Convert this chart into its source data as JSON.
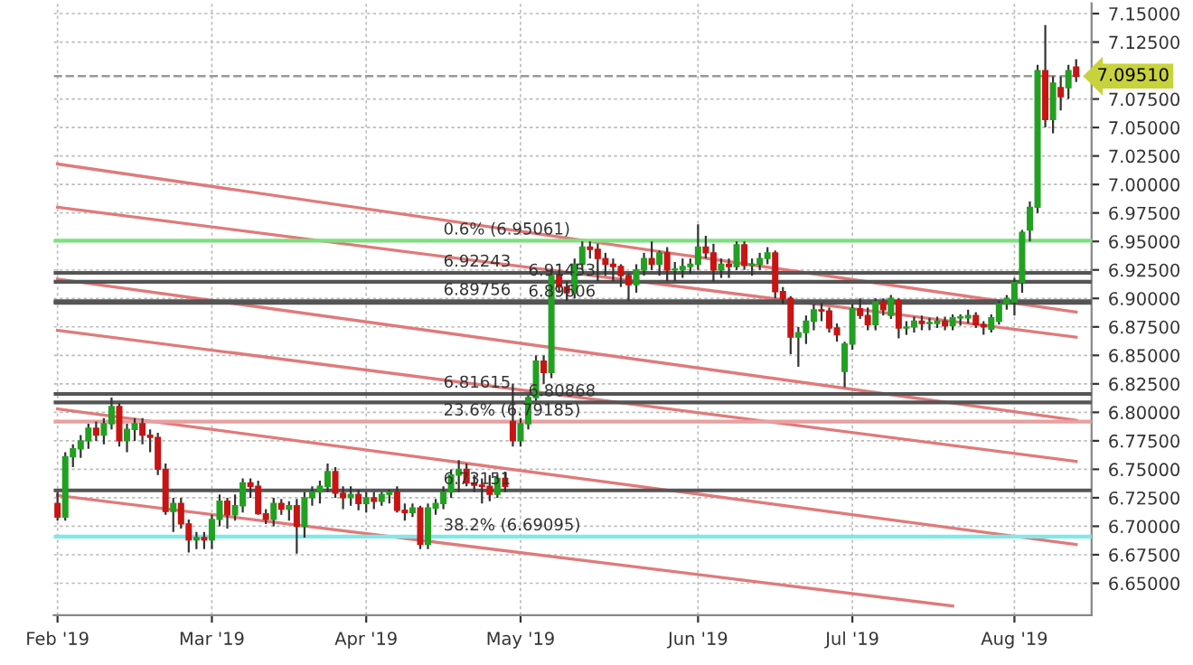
{
  "chart_data": {
    "type": "candlestick",
    "categories": [
      "Feb '19",
      null,
      null,
      null,
      null,
      null,
      null,
      null,
      null,
      null,
      null,
      null,
      null,
      null,
      null,
      null,
      null,
      null,
      null,
      null,
      "Mar '19",
      null,
      null,
      null,
      null,
      null,
      null,
      null,
      null,
      null,
      null,
      null,
      null,
      null,
      null,
      null,
      null,
      null,
      null,
      null,
      "Apr '19",
      null,
      null,
      null,
      null,
      null,
      null,
      null,
      null,
      null,
      null,
      null,
      null,
      null,
      null,
      null,
      null,
      null,
      null,
      null,
      "May '19",
      null,
      null,
      null,
      null,
      null,
      null,
      null,
      null,
      null,
      null,
      null,
      null,
      null,
      null,
      null,
      null,
      null,
      null,
      null,
      null,
      null,
      null,
      "Jun '19",
      null,
      null,
      null,
      null,
      null,
      null,
      null,
      null,
      null,
      null,
      null,
      null,
      null,
      null,
      null,
      null,
      null,
      null,
      null,
      "Jul '19",
      null,
      null,
      null,
      null,
      null,
      null,
      null,
      null,
      null,
      null,
      null,
      null,
      null,
      null,
      null,
      null,
      null,
      null,
      null,
      null,
      "Aug '19",
      null,
      null,
      null,
      null,
      null,
      null,
      null,
      null
    ],
    "ohlc": [
      [
        6.72,
        6.73,
        6.705,
        6.708
      ],
      [
        6.708,
        6.765,
        6.705,
        6.761
      ],
      [
        6.761,
        6.772,
        6.752,
        6.768
      ],
      [
        6.768,
        6.78,
        6.76,
        6.775
      ],
      [
        6.775,
        6.79,
        6.768,
        6.786
      ],
      [
        6.786,
        6.792,
        6.775,
        6.78
      ],
      [
        6.78,
        6.795,
        6.772,
        6.79
      ],
      [
        6.79,
        6.813,
        6.785,
        6.805
      ],
      [
        6.805,
        6.808,
        6.77,
        6.775
      ],
      [
        6.775,
        6.79,
        6.765,
        6.785
      ],
      [
        6.785,
        6.795,
        6.775,
        6.79
      ],
      [
        6.79,
        6.795,
        6.772,
        6.78
      ],
      [
        6.78,
        6.785,
        6.765,
        6.778
      ],
      [
        6.778,
        6.782,
        6.745,
        6.75
      ],
      [
        6.75,
        6.755,
        6.71,
        6.713
      ],
      [
        6.713,
        6.725,
        6.695,
        6.72
      ],
      [
        6.72,
        6.725,
        6.698,
        6.702
      ],
      [
        6.702,
        6.706,
        6.677,
        6.688
      ],
      [
        6.688,
        6.695,
        6.68,
        6.69
      ],
      [
        6.69,
        6.695,
        6.68,
        6.688
      ],
      [
        6.688,
        6.71,
        6.68,
        6.706
      ],
      [
        6.706,
        6.728,
        6.7,
        6.722
      ],
      [
        6.722,
        6.725,
        6.698,
        6.71
      ],
      [
        6.71,
        6.728,
        6.705,
        6.718
      ],
      [
        6.718,
        6.742,
        6.712,
        6.738
      ],
      [
        6.738,
        6.742,
        6.725,
        6.735
      ],
      [
        6.735,
        6.74,
        6.71,
        6.711
      ],
      [
        6.711,
        6.715,
        6.702,
        6.706
      ],
      [
        6.706,
        6.725,
        6.7,
        6.72
      ],
      [
        6.72,
        6.724,
        6.71,
        6.715
      ],
      [
        6.715,
        6.722,
        6.705,
        6.718
      ],
      [
        6.718,
        6.724,
        6.676,
        6.7
      ],
      [
        6.7,
        6.73,
        6.69,
        6.725
      ],
      [
        6.725,
        6.735,
        6.718,
        6.73
      ],
      [
        6.73,
        6.74,
        6.72,
        6.735
      ],
      [
        6.735,
        6.755,
        6.73,
        6.748
      ],
      [
        6.748,
        6.752,
        6.725,
        6.729
      ],
      [
        6.729,
        6.735,
        6.715,
        6.725
      ],
      [
        6.725,
        6.735,
        6.718,
        6.728
      ],
      [
        6.728,
        6.732,
        6.714,
        6.72
      ],
      [
        6.72,
        6.73,
        6.712,
        6.725
      ],
      [
        6.725,
        6.73,
        6.715,
        6.722
      ],
      [
        6.722,
        6.73,
        6.718,
        6.728
      ],
      [
        6.728,
        6.732,
        6.72,
        6.73
      ],
      [
        6.73,
        6.735,
        6.712,
        6.714
      ],
      [
        6.714,
        6.72,
        6.705,
        6.712
      ],
      [
        6.712,
        6.72,
        6.708,
        6.716
      ],
      [
        6.716,
        6.718,
        6.68,
        6.684
      ],
      [
        6.684,
        6.72,
        6.68,
        6.716
      ],
      [
        6.716,
        6.724,
        6.71,
        6.72
      ],
      [
        6.72,
        6.735,
        6.715,
        6.73
      ],
      [
        6.73,
        6.75,
        6.725,
        6.745
      ],
      [
        6.745,
        6.758,
        6.73,
        6.75
      ],
      [
        6.75,
        6.755,
        6.735,
        6.738
      ],
      [
        6.738,
        6.745,
        6.73,
        6.736
      ],
      [
        6.736,
        6.742,
        6.72,
        6.735
      ],
      [
        6.735,
        6.745,
        6.722,
        6.728
      ],
      [
        6.728,
        6.746,
        6.725,
        6.742
      ],
      [
        6.742,
        6.748,
        6.73,
        6.735
      ],
      [
        6.792,
        6.825,
        6.77,
        6.775
      ],
      [
        6.775,
        6.795,
        6.77,
        6.79
      ],
      [
        6.79,
        6.815,
        6.785,
        6.813
      ],
      [
        6.813,
        6.85,
        6.81,
        6.845
      ],
      [
        6.845,
        6.85,
        6.825,
        6.835
      ],
      [
        6.835,
        6.925,
        6.83,
        6.92
      ],
      [
        6.92,
        6.925,
        6.905,
        6.91
      ],
      [
        6.91,
        6.915,
        6.898,
        6.905
      ],
      [
        6.905,
        6.935,
        6.9,
        6.93
      ],
      [
        6.93,
        6.95,
        6.925,
        6.945
      ],
      [
        6.945,
        6.95,
        6.935,
        6.943
      ],
      [
        6.943,
        6.948,
        6.915,
        6.935
      ],
      [
        6.935,
        6.94,
        6.92,
        6.93
      ],
      [
        6.93,
        6.935,
        6.915,
        6.928
      ],
      [
        6.928,
        6.93,
        6.91,
        6.92
      ],
      [
        6.92,
        6.922,
        6.898,
        6.912
      ],
      [
        6.912,
        6.93,
        6.905,
        6.925
      ],
      [
        6.925,
        6.94,
        6.92,
        6.935
      ],
      [
        6.935,
        6.95,
        6.925,
        6.93
      ],
      [
        6.93,
        6.942,
        6.92,
        6.94
      ],
      [
        6.94,
        6.945,
        6.915,
        6.925
      ],
      [
        6.925,
        6.932,
        6.915,
        6.925
      ],
      [
        6.925,
        6.935,
        6.918,
        6.928
      ],
      [
        6.928,
        6.935,
        6.922,
        6.93
      ],
      [
        6.93,
        6.965,
        6.925,
        6.945
      ],
      [
        6.945,
        6.955,
        6.935,
        6.94
      ],
      [
        6.94,
        6.948,
        6.915,
        6.925
      ],
      [
        6.925,
        6.935,
        6.918,
        6.93
      ],
      [
        6.93,
        6.935,
        6.918,
        6.928
      ],
      [
        6.928,
        6.95,
        6.925,
        6.947
      ],
      [
        6.947,
        6.95,
        6.925,
        6.929
      ],
      [
        6.929,
        6.935,
        6.92,
        6.93
      ],
      [
        6.93,
        6.94,
        6.925,
        6.935
      ],
      [
        6.935,
        6.945,
        6.93,
        6.94
      ],
      [
        6.94,
        6.942,
        6.9,
        6.906
      ],
      [
        6.906,
        6.91,
        6.895,
        6.9
      ],
      [
        6.9,
        6.902,
        6.851,
        6.866
      ],
      [
        6.866,
        6.875,
        6.84,
        6.87
      ],
      [
        6.87,
        6.885,
        6.86,
        6.88
      ],
      [
        6.88,
        6.895,
        6.872,
        6.89
      ],
      [
        6.89,
        6.896,
        6.88,
        6.889
      ],
      [
        6.889,
        6.892,
        6.87,
        6.874
      ],
      [
        6.874,
        6.878,
        6.862,
        6.868
      ],
      [
        6.836,
        6.862,
        6.822,
        6.86
      ],
      [
        6.86,
        6.895,
        6.855,
        6.891
      ],
      [
        6.891,
        6.9,
        6.882,
        6.885
      ],
      [
        6.885,
        6.892,
        6.872,
        6.877
      ],
      [
        6.877,
        6.9,
        6.872,
        6.897
      ],
      [
        6.897,
        6.9,
        6.885,
        6.89
      ],
      [
        6.885,
        6.903,
        6.882,
        6.9
      ],
      [
        6.898,
        6.9,
        6.865,
        6.874
      ],
      [
        6.874,
        6.88,
        6.868,
        6.874
      ],
      [
        6.875,
        6.884,
        6.87,
        6.88
      ],
      [
        6.88,
        6.885,
        6.872,
        6.878
      ],
      [
        6.878,
        6.883,
        6.872,
        6.878
      ],
      [
        6.878,
        6.884,
        6.874,
        6.88
      ],
      [
        6.88,
        6.884,
        6.872,
        6.876
      ],
      [
        6.876,
        6.886,
        6.872,
        6.883
      ],
      [
        6.883,
        6.886,
        6.876,
        6.883
      ],
      [
        6.883,
        6.89,
        6.878,
        6.885
      ],
      [
        6.885,
        6.888,
        6.874,
        6.877
      ],
      [
        6.877,
        6.88,
        6.868,
        6.875
      ],
      [
        6.873,
        6.886,
        6.87,
        6.883
      ],
      [
        6.88,
        6.898,
        6.877,
        6.895
      ],
      [
        6.895,
        6.903,
        6.89,
        6.9
      ],
      [
        6.897,
        6.918,
        6.885,
        6.914
      ],
      [
        6.914,
        6.96,
        6.905,
        6.958
      ],
      [
        6.96,
        6.985,
        6.95,
        6.98
      ],
      [
        6.98,
        7.105,
        6.975,
        7.1
      ],
      [
        7.1,
        7.14,
        7.05,
        7.057
      ],
      [
        7.057,
        7.095,
        7.045,
        7.089
      ],
      [
        7.085,
        7.095,
        7.065,
        7.077
      ],
      [
        7.085,
        7.105,
        7.075,
        7.1
      ],
      [
        7.103,
        7.11,
        7.09,
        7.0951
      ]
    ],
    "colors": [
      "#c81414",
      "#22a022",
      "#22a022",
      "#22a022",
      "#22a022",
      "#c81414",
      "#22a022",
      "#22a022",
      "#c81414",
      "#22a022",
      "#22a022",
      "#c81414",
      "#c81414",
      "#c81414",
      "#c81414",
      "#22a022",
      "#c81414",
      "#c81414",
      "#22a022",
      "#c81414",
      "#22a022",
      "#22a022",
      "#c81414",
      "#22a022",
      "#22a022",
      "#c81414",
      "#c81414",
      "#c81414",
      "#22a022",
      "#c81414",
      "#22a022",
      "#c81414",
      "#22a022",
      "#22a022",
      "#22a022",
      "#22a022",
      "#c81414",
      "#c81414",
      "#22a022",
      "#c81414",
      "#22a022",
      "#c81414",
      "#22a022",
      "#22a022",
      "#c81414",
      "#c81414",
      "#22a022",
      "#c81414",
      "#22a022",
      "#22a022",
      "#22a022",
      "#22a022",
      "#22a022",
      "#c81414",
      "#c81414",
      "#c81414",
      "#c81414",
      "#22a022",
      "#c81414",
      "#c81414",
      "#22a022",
      "#22a022",
      "#22a022",
      "#c81414",
      "#22a022",
      "#c81414",
      "#c81414",
      "#22a022",
      "#22a022",
      "#c81414",
      "#c81414",
      "#c81414",
      "#c81414",
      "#c81414",
      "#c81414",
      "#22a022",
      "#22a022",
      "#c81414",
      "#22a022",
      "#c81414",
      "#22a022",
      "#22a022",
      "#22a022",
      "#22a022",
      "#c81414",
      "#c81414",
      "#22a022",
      "#c81414",
      "#22a022",
      "#c81414",
      "#22a022",
      "#22a022",
      "#22a022",
      "#c81414",
      "#c81414",
      "#c81414",
      "#22a022",
      "#22a022",
      "#22a022",
      "#c81414",
      "#c81414",
      "#c81414",
      "#22a022",
      "#22a022",
      "#c81414",
      "#c81414",
      "#22a022",
      "#c81414",
      "#22a022",
      "#c81414",
      "#22a022",
      "#22a022",
      "#c81414",
      "#22a022",
      "#22a022",
      "#c81414",
      "#22a022",
      "#22a022",
      "#22a022",
      "#c81414",
      "#c81414",
      "#22a022",
      "#22a022",
      "#22a022",
      "#22a022",
      "#22a022",
      "#22a022",
      "#22a022",
      "#c81414",
      "#22a022",
      "#c81414",
      "#22a022",
      "#c81414"
    ],
    "series": [
      {
        "type": "line",
        "color": "#e07a7a",
        "values": [
          7.018,
          null,
          null,
          null,
          null,
          null,
          null,
          null,
          null,
          null,
          null,
          null,
          null,
          null,
          null,
          null,
          null,
          null,
          null,
          null,
          null,
          null,
          null,
          null,
          null,
          null,
          null,
          null,
          null,
          null,
          null,
          null,
          null,
          null,
          null,
          null,
          null,
          null,
          null,
          null,
          null,
          null,
          null,
          null,
          null,
          null,
          null,
          null,
          null,
          null,
          null,
          null,
          null,
          null,
          null,
          null,
          null,
          null,
          null,
          null,
          null,
          null,
          null,
          null,
          null,
          null,
          null,
          null,
          null,
          null,
          null,
          null,
          null,
          null,
          null,
          null,
          null,
          null,
          null,
          null,
          null,
          null,
          null,
          null,
          null,
          null,
          null,
          null,
          null,
          null,
          null,
          null,
          null,
          null,
          null,
          null,
          null,
          null,
          null,
          null,
          null,
          null,
          null,
          null,
          null,
          null,
          null,
          null,
          null,
          null,
          null,
          null,
          null,
          null,
          null,
          null,
          null,
          null,
          null,
          null,
          null,
          null,
          null,
          null,
          null,
          null,
          null,
          null,
          null,
          null,
          null,
          null,
          6.888
        ]
      },
      {
        "type": "line",
        "color": "#e07a7a",
        "values": [
          6.98,
          null,
          null,
          null,
          null,
          null,
          null,
          null,
          null,
          null,
          null,
          null,
          null,
          null,
          null,
          null,
          null,
          null,
          null,
          null,
          null,
          null,
          null,
          null,
          null,
          null,
          null,
          null,
          null,
          null,
          null,
          null,
          null,
          null,
          null,
          null,
          null,
          null,
          null,
          null,
          null,
          null,
          null,
          null,
          null,
          null,
          null,
          null,
          null,
          null,
          null,
          null,
          null,
          null,
          null,
          null,
          null,
          null,
          null,
          null,
          null,
          null,
          null,
          null,
          null,
          null,
          null,
          null,
          null,
          null,
          null,
          null,
          null,
          null,
          null,
          null,
          null,
          null,
          null,
          null,
          null,
          null,
          null,
          null,
          null,
          null,
          null,
          null,
          null,
          null,
          null,
          null,
          null,
          null,
          null,
          null,
          null,
          null,
          null,
          null,
          null,
          null,
          null,
          null,
          null,
          null,
          null,
          null,
          null,
          null,
          null,
          null,
          null,
          null,
          null,
          null,
          null,
          null,
          null,
          null,
          null,
          null,
          null,
          null,
          null,
          null,
          null,
          null,
          null,
          null,
          null,
          null,
          6.866
        ]
      },
      {
        "type": "line",
        "color": "#e07a7a",
        "values": [
          6.917,
          null,
          null,
          null,
          null,
          null,
          null,
          null,
          null,
          null,
          null,
          null,
          null,
          null,
          null,
          null,
          null,
          null,
          null,
          null,
          null,
          null,
          null,
          null,
          null,
          null,
          null,
          null,
          null,
          null,
          null,
          null,
          null,
          null,
          null,
          null,
          null,
          null,
          null,
          null,
          null,
          null,
          null,
          null,
          null,
          null,
          null,
          null,
          null,
          null,
          null,
          null,
          null,
          null,
          null,
          null,
          null,
          null,
          null,
          null,
          null,
          null,
          null,
          null,
          null,
          null,
          null,
          null,
          null,
          null,
          null,
          null,
          null,
          null,
          null,
          null,
          null,
          null,
          null,
          null,
          null,
          null,
          null,
          null,
          null,
          null,
          null,
          null,
          null,
          null,
          null,
          null,
          null,
          null,
          null,
          null,
          null,
          null,
          null,
          null,
          null,
          null,
          null,
          null,
          null,
          null,
          null,
          null,
          null,
          null,
          null,
          null,
          null,
          null,
          null,
          null,
          null,
          null,
          null,
          null,
          null,
          null,
          null,
          null,
          null,
          null,
          null,
          null,
          null,
          null,
          null,
          null,
          6.793
        ]
      },
      {
        "type": "line",
        "color": "#e07a7a",
        "values": [
          6.872,
          null,
          null,
          null,
          null,
          null,
          null,
          null,
          null,
          null,
          null,
          null,
          null,
          null,
          null,
          null,
          null,
          null,
          null,
          null,
          null,
          null,
          null,
          null,
          null,
          null,
          null,
          null,
          null,
          null,
          null,
          null,
          null,
          null,
          null,
          null,
          null,
          null,
          null,
          null,
          null,
          null,
          null,
          null,
          null,
          null,
          null,
          null,
          null,
          null,
          null,
          null,
          null,
          null,
          null,
          null,
          null,
          null,
          null,
          null,
          null,
          null,
          null,
          null,
          null,
          null,
          null,
          null,
          null,
          null,
          null,
          null,
          null,
          null,
          null,
          null,
          null,
          null,
          null,
          null,
          null,
          null,
          null,
          null,
          null,
          null,
          null,
          null,
          null,
          null,
          null,
          null,
          null,
          null,
          null,
          null,
          null,
          null,
          null,
          null,
          null,
          null,
          null,
          null,
          null,
          null,
          null,
          null,
          null,
          null,
          null,
          null,
          null,
          null,
          null,
          null,
          null,
          null,
          null,
          null,
          null,
          null,
          null,
          null,
          null,
          null,
          null,
          null,
          null,
          null,
          null,
          null,
          6.757
        ]
      },
      {
        "type": "line",
        "color": "#e07a7a",
        "values": [
          6.803,
          null,
          null,
          null,
          null,
          null,
          null,
          null,
          null,
          null,
          null,
          null,
          null,
          null,
          null,
          null,
          null,
          null,
          null,
          null,
          null,
          null,
          null,
          null,
          null,
          null,
          null,
          null,
          null,
          null,
          null,
          null,
          null,
          null,
          null,
          null,
          null,
          null,
          null,
          null,
          null,
          null,
          null,
          null,
          null,
          null,
          null,
          null,
          null,
          null,
          null,
          null,
          null,
          null,
          null,
          null,
          null,
          null,
          null,
          null,
          null,
          null,
          null,
          null,
          null,
          null,
          null,
          null,
          null,
          null,
          null,
          null,
          null,
          null,
          null,
          null,
          null,
          null,
          null,
          null,
          null,
          null,
          null,
          null,
          null,
          null,
          null,
          null,
          null,
          null,
          null,
          null,
          null,
          null,
          null,
          null,
          null,
          null,
          null,
          null,
          null,
          null,
          null,
          null,
          null,
          null,
          null,
          null,
          null,
          null,
          null,
          null,
          null,
          null,
          null,
          null,
          null,
          null,
          null,
          null,
          null,
          null,
          null,
          null,
          null,
          null,
          null,
          null,
          null,
          null,
          null,
          null,
          6.684
        ]
      },
      {
        "type": "line",
        "color": "#e07a7a",
        "values": [
          6.727,
          null,
          null,
          null,
          null,
          null,
          null,
          null,
          null,
          null,
          null,
          null,
          null,
          null,
          null,
          null,
          null,
          null,
          null,
          null,
          null,
          null,
          null,
          null,
          null,
          null,
          null,
          null,
          null,
          null,
          null,
          null,
          null,
          null,
          null,
          null,
          null,
          null,
          null,
          null,
          null,
          null,
          null,
          null,
          null,
          null,
          null,
          null,
          null,
          null,
          null,
          null,
          null,
          null,
          null,
          null,
          null,
          null,
          null,
          null,
          null,
          null,
          null,
          null,
          null,
          null,
          null,
          null,
          null,
          null,
          null,
          null,
          null,
          null,
          null,
          null,
          null,
          null,
          null,
          null,
          null,
          null,
          null,
          null,
          null,
          null,
          null,
          null,
          null,
          null,
          null,
          null,
          null,
          null,
          null,
          null,
          null,
          null,
          null,
          null,
          null,
          null,
          null,
          null,
          null,
          null,
          null,
          null,
          null,
          null,
          null,
          null,
          null,
          null,
          null,
          null,
          6.63,
          null,
          null,
          null,
          null,
          null,
          null,
          null,
          null,
          null,
          null,
          null,
          null,
          null,
          null,
          null,
          null
        ]
      }
    ],
    "ref_lines": [
      {
        "axis": "y",
        "value": 6.95061,
        "label": "0.6% (6.95061)",
        "color": "#7ee07e",
        "line_style": "solid"
      },
      {
        "axis": "y",
        "value": 6.92243,
        "label": "6.92243",
        "color": "#555555",
        "line_style": "solid"
      },
      {
        "axis": "y",
        "value": 6.91453,
        "label": "6.91453",
        "color": "#555555",
        "line_style": "solid"
      },
      {
        "axis": "y",
        "value": 6.89756,
        "label": "6.89756",
        "color": "#555555",
        "line_style": "solid"
      },
      {
        "axis": "y",
        "value": 6.89606,
        "label": "6.89606",
        "color": "#555555",
        "line_style": "solid"
      },
      {
        "axis": "y",
        "value": 6.81615,
        "label": "6.81615",
        "color": "#555555",
        "line_style": "solid"
      },
      {
        "axis": "y",
        "value": 6.80868,
        "label": "6.80868",
        "color": "#555555",
        "line_style": "solid"
      },
      {
        "axis": "y",
        "value": 6.79185,
        "label": "23.6% (6.79185)",
        "color": "#e8a0a0",
        "line_style": "solid"
      },
      {
        "axis": "y",
        "value": 6.73151,
        "label": "6.73151",
        "color": "#555555",
        "line_style": "solid"
      },
      {
        "axis": "y",
        "value": 6.69095,
        "label": "38.2% (6.69095)",
        "color": "#7fe8e8",
        "line_style": "solid"
      },
      {
        "axis": "y",
        "value": 7.0951,
        "label": "7.09510",
        "color": "#999999",
        "line_style": "dashed"
      }
    ],
    "ylim": [
      6.622,
      7.159
    ],
    "yticks": [
      {
        "value": 6.65,
        "label": "6.65000"
      },
      {
        "value": 6.675,
        "label": "6.67500"
      },
      {
        "value": 6.7,
        "label": "6.70000"
      },
      {
        "value": 6.725,
        "label": "6.72500"
      },
      {
        "value": 6.75,
        "label": "6.75000"
      },
      {
        "value": 6.775,
        "label": "6.77500"
      },
      {
        "value": 6.8,
        "label": "6.80000"
      },
      {
        "value": 6.825,
        "label": "6.82500"
      },
      {
        "value": 6.85,
        "label": "6.85000"
      },
      {
        "value": 6.875,
        "label": "6.87500"
      },
      {
        "value": 6.9,
        "label": "6.90000"
      },
      {
        "value": 6.925,
        "label": "6.92500"
      },
      {
        "value": 6.95,
        "label": "6.95000"
      },
      {
        "value": 6.975,
        "label": "6.97500"
      },
      {
        "value": 7.0,
        "label": "7.00000"
      },
      {
        "value": 7.025,
        "label": "7.02500"
      },
      {
        "value": 7.05,
        "label": "7.05000"
      },
      {
        "value": 7.075,
        "label": "7.07500"
      },
      {
        "value": 7.125,
        "label": "7.12500"
      },
      {
        "value": 7.15,
        "label": "7.15000"
      }
    ],
    "grid": true
  }
}
